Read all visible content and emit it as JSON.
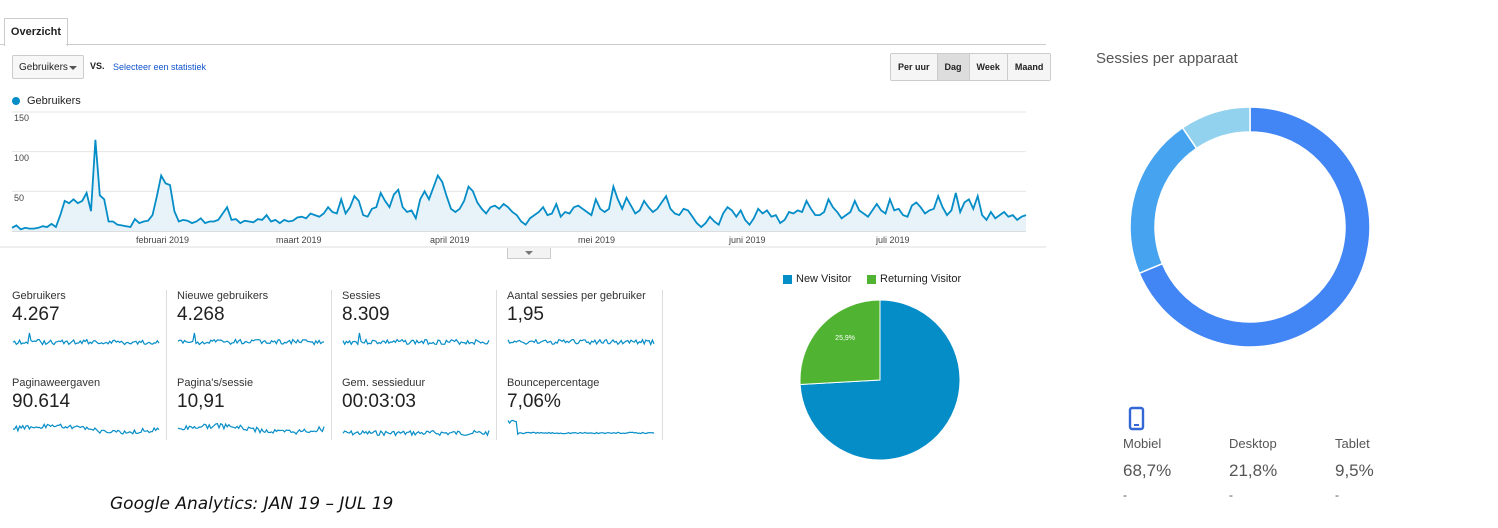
{
  "tab": {
    "label": "Overzicht"
  },
  "controls": {
    "metric_dropdown": "Gebruikers",
    "vs_label": "VS.",
    "select_stat_link": "Selecteer een statistiek",
    "granularity": [
      "Per uur",
      "Dag",
      "Week",
      "Maand"
    ],
    "active_granularity": "Dag"
  },
  "main_chart": {
    "legend": "Gebruikers",
    "y_ticks": [
      "150",
      "100",
      "50"
    ],
    "months": [
      "februari 2019",
      "maart 2019",
      "april 2019",
      "mei 2019",
      "juni 2019",
      "juli 2019"
    ],
    "color": "#058dc7"
  },
  "chart_data": [
    {
      "type": "area",
      "series": [
        {
          "name": "Gebruikers",
          "values": [
            4,
            7,
            2,
            4,
            3,
            3,
            4,
            6,
            5,
            9,
            5,
            20,
            38,
            35,
            40,
            35,
            38,
            48,
            25,
            115,
            45,
            40,
            12,
            12,
            8,
            7,
            6,
            5,
            15,
            10,
            12,
            13,
            20,
            44,
            70,
            60,
            58,
            25,
            12,
            14,
            13,
            10,
            12,
            16,
            10,
            12,
            12,
            14,
            22,
            30,
            14,
            15,
            10,
            13,
            12,
            11,
            15,
            14,
            20,
            12,
            14,
            10,
            14,
            12,
            13,
            17,
            18,
            16,
            22,
            20,
            18,
            22,
            30,
            24,
            22,
            40,
            22,
            30,
            44,
            38,
            20,
            18,
            28,
            30,
            48,
            38,
            30,
            46,
            52,
            30,
            24,
            26,
            16,
            40,
            50,
            40,
            55,
            70,
            62,
            44,
            28,
            24,
            28,
            38,
            56,
            50,
            36,
            28,
            22,
            30,
            32,
            28,
            34,
            30,
            24,
            20,
            12,
            8,
            16,
            20,
            24,
            30,
            20,
            22,
            34,
            18,
            24,
            22,
            30,
            32,
            28,
            24,
            20,
            40,
            28,
            24,
            28,
            56,
            40,
            28,
            42,
            32,
            22,
            26,
            38,
            30,
            24,
            28,
            36,
            44,
            28,
            22,
            20,
            28,
            26,
            18,
            10,
            5,
            10,
            18,
            12,
            8,
            22,
            30,
            26,
            18,
            26,
            14,
            8,
            16,
            28,
            22,
            26,
            18,
            20,
            10,
            14,
            24,
            22,
            26,
            24,
            38,
            28,
            20,
            20,
            24,
            40,
            30,
            24,
            16,
            20,
            24,
            38,
            26,
            22,
            18,
            26,
            34,
            26,
            22,
            40,
            26,
            28,
            20,
            18,
            32,
            36,
            30,
            22,
            26,
            28,
            44,
            30,
            20,
            26,
            48,
            24,
            36,
            40,
            28,
            44,
            20,
            14,
            24,
            16,
            20,
            24,
            18,
            20,
            14,
            18,
            20
          ]
        }
      ],
      "x_labels": [
        "februari 2019",
        "maart 2019",
        "april 2019",
        "mei 2019",
        "juni 2019",
        "juli 2019"
      ],
      "ylim": [
        0,
        150
      ],
      "y_ticks": [
        50,
        100,
        150
      ]
    },
    {
      "type": "pie",
      "categories": [
        "New Visitor",
        "Returning Visitor"
      ],
      "values": [
        74.1,
        25.9
      ],
      "labels": [
        "74,1%",
        "25,9%"
      ],
      "colors": [
        "#058dc7",
        "#50b432"
      ]
    },
    {
      "type": "pie",
      "title": "Sessies per apparaat",
      "categories": [
        "Mobiel",
        "Desktop",
        "Tablet"
      ],
      "values": [
        68.7,
        21.8,
        9.5
      ],
      "colors": [
        "#4285f4",
        "#45a3f0",
        "#93d2ee"
      ]
    }
  ],
  "metrics": [
    {
      "label": "Gebruikers",
      "value": "4.267"
    },
    {
      "label": "Nieuwe gebruikers",
      "value": "4.268"
    },
    {
      "label": "Sessies",
      "value": "8.309"
    },
    {
      "label": "Aantal sessies per gebruiker",
      "value": "1,95"
    },
    {
      "label": "Paginaweergaven",
      "value": "90.614"
    },
    {
      "label": "Pagina's/sessie",
      "value": "10,91"
    },
    {
      "label": "Gem. sessieduur",
      "value": "00:03:03"
    },
    {
      "label": "Bouncepercentage",
      "value": "7,06%"
    }
  ],
  "visitor_pie": {
    "legend": [
      "New Visitor",
      "Returning Visitor"
    ],
    "labels": [
      "74,1%",
      "25,9%"
    ]
  },
  "devices": {
    "title": "Sessies per apparaat",
    "items": [
      {
        "label": "Mobiel",
        "value": "68,7%",
        "icon": "mobile-phone-icon"
      },
      {
        "label": "Desktop",
        "value": "21,8%"
      },
      {
        "label": "Tablet",
        "value": "9,5%"
      }
    ],
    "dash": "-"
  },
  "caption": "Google Analytics: JAN 19 – JUL 19"
}
